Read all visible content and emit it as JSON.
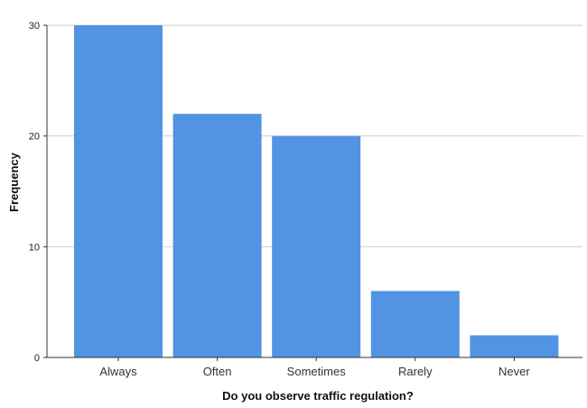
{
  "chart_data": {
    "type": "bar",
    "title": "",
    "xlabel": "Do you observe traffic regulation?",
    "ylabel": "Frequency",
    "categories": [
      "Always",
      "Often",
      "Sometimes",
      "Rarely",
      "Never"
    ],
    "values": [
      30,
      22,
      20,
      6,
      2
    ],
    "ylim": [
      0,
      30
    ],
    "yticks": [
      0,
      10,
      20,
      30
    ],
    "grid": true,
    "bar_color": "#5293e3",
    "grid_color": "#cfcfcf"
  }
}
